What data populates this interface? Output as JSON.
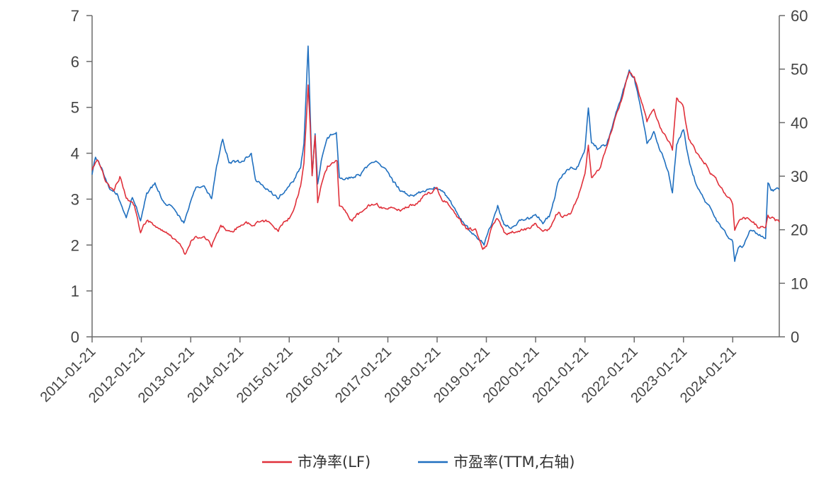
{
  "chart_data": {
    "type": "line",
    "x_tick_labels": [
      "2011-01-21",
      "2012-01-21",
      "2013-01-21",
      "2014-01-21",
      "2015-01-21",
      "2016-01-21",
      "2017-01-21",
      "2018-01-21",
      "2019-01-21",
      "2020-01-21",
      "2021-01-21",
      "2022-01-21",
      "2023-01-21",
      "2024-01-21"
    ],
    "x_range": [
      "2011-01-21",
      "2024-12-31"
    ],
    "y_left": {
      "min": 0,
      "max": 7,
      "ticks": [
        0,
        1,
        2,
        3,
        4,
        5,
        6,
        7
      ]
    },
    "y_right": {
      "min": 0,
      "max": 60,
      "ticks": [
        0,
        10,
        20,
        30,
        40,
        50,
        60
      ]
    },
    "grid": false,
    "legend_position": "bottom",
    "series": [
      {
        "name": "市净率(LF)",
        "axis": "left",
        "color": "#e0303a",
        "points": [
          [
            "2011-01-21",
            3.65
          ],
          [
            "2011-03-01",
            3.9
          ],
          [
            "2011-05-01",
            3.4
          ],
          [
            "2011-07-01",
            3.15
          ],
          [
            "2011-08-15",
            3.5
          ],
          [
            "2011-10-01",
            3.0
          ],
          [
            "2011-12-01",
            2.85
          ],
          [
            "2012-01-15",
            2.3
          ],
          [
            "2012-03-01",
            2.55
          ],
          [
            "2012-05-01",
            2.4
          ],
          [
            "2012-07-01",
            2.3
          ],
          [
            "2012-09-01",
            2.2
          ],
          [
            "2012-11-01",
            2.0
          ],
          [
            "2012-12-10",
            1.75
          ],
          [
            "2013-01-21",
            2.05
          ],
          [
            "2013-03-01",
            2.15
          ],
          [
            "2013-05-01",
            2.2
          ],
          [
            "2013-06-25",
            2.0
          ],
          [
            "2013-09-01",
            2.45
          ],
          [
            "2013-11-01",
            2.3
          ],
          [
            "2014-01-21",
            2.4
          ],
          [
            "2014-03-01",
            2.5
          ],
          [
            "2014-05-01",
            2.45
          ],
          [
            "2014-07-01",
            2.55
          ],
          [
            "2014-09-01",
            2.5
          ],
          [
            "2014-11-01",
            2.35
          ],
          [
            "2015-01-21",
            2.6
          ],
          [
            "2015-03-01",
            2.8
          ],
          [
            "2015-04-15",
            3.3
          ],
          [
            "2015-05-10",
            3.8
          ],
          [
            "2015-06-10",
            5.5
          ],
          [
            "2015-06-25",
            4.6
          ],
          [
            "2015-07-10",
            3.5
          ],
          [
            "2015-08-01",
            4.4
          ],
          [
            "2015-08-20",
            2.95
          ],
          [
            "2015-09-15",
            3.3
          ],
          [
            "2015-11-01",
            3.7
          ],
          [
            "2016-01-10",
            3.85
          ],
          [
            "2016-01-28",
            2.85
          ],
          [
            "2016-03-01",
            2.75
          ],
          [
            "2016-05-01",
            2.55
          ],
          [
            "2016-07-01",
            2.7
          ],
          [
            "2016-09-01",
            2.85
          ],
          [
            "2016-11-01",
            2.85
          ],
          [
            "2017-01-21",
            2.8
          ],
          [
            "2017-03-01",
            2.85
          ],
          [
            "2017-05-01",
            2.75
          ],
          [
            "2017-07-01",
            2.85
          ],
          [
            "2017-09-01",
            2.95
          ],
          [
            "2017-11-01",
            3.1
          ],
          [
            "2018-01-21",
            3.2
          ],
          [
            "2018-03-01",
            3.0
          ],
          [
            "2018-05-01",
            2.85
          ],
          [
            "2018-07-01",
            2.6
          ],
          [
            "2018-09-01",
            2.35
          ],
          [
            "2018-11-01",
            2.3
          ],
          [
            "2018-12-25",
            1.95
          ],
          [
            "2019-01-21",
            2.0
          ],
          [
            "2019-03-01",
            2.4
          ],
          [
            "2019-04-15",
            2.55
          ],
          [
            "2019-06-01",
            2.25
          ],
          [
            "2019-08-01",
            2.3
          ],
          [
            "2019-10-01",
            2.35
          ],
          [
            "2019-12-01",
            2.35
          ],
          [
            "2020-01-21",
            2.45
          ],
          [
            "2020-03-15",
            2.3
          ],
          [
            "2020-05-01",
            2.35
          ],
          [
            "2020-07-10",
            2.75
          ],
          [
            "2020-08-01",
            2.6
          ],
          [
            "2020-10-01",
            2.7
          ],
          [
            "2020-12-01",
            3.0
          ],
          [
            "2021-01-21",
            3.6
          ],
          [
            "2021-02-15",
            4.2
          ],
          [
            "2021-03-10",
            3.5
          ],
          [
            "2021-05-01",
            3.6
          ],
          [
            "2021-07-01",
            4.1
          ],
          [
            "2021-09-01",
            4.8
          ],
          [
            "2021-11-01",
            5.3
          ],
          [
            "2021-12-15",
            5.8
          ],
          [
            "2022-01-21",
            5.7
          ],
          [
            "2022-03-01",
            5.3
          ],
          [
            "2022-04-25",
            4.7
          ],
          [
            "2022-06-15",
            5.0
          ],
          [
            "2022-08-01",
            4.6
          ],
          [
            "2022-10-01",
            4.3
          ],
          [
            "2022-10-31",
            4.1
          ],
          [
            "2022-12-01",
            5.2
          ],
          [
            "2023-01-21",
            5.0
          ],
          [
            "2023-03-01",
            4.3
          ],
          [
            "2023-05-01",
            4.0
          ],
          [
            "2023-07-01",
            3.8
          ],
          [
            "2023-09-01",
            3.5
          ],
          [
            "2023-11-01",
            3.2
          ],
          [
            "2024-01-21",
            2.9
          ],
          [
            "2024-02-05",
            2.35
          ],
          [
            "2024-03-01",
            2.55
          ],
          [
            "2024-04-15",
            2.6
          ],
          [
            "2024-06-01",
            2.55
          ],
          [
            "2024-08-01",
            2.35
          ],
          [
            "2024-09-20",
            2.4
          ],
          [
            "2024-10-08",
            2.7
          ],
          [
            "2024-11-01",
            2.6
          ],
          [
            "2024-12-31",
            2.5
          ]
        ]
      },
      {
        "name": "市盈率(TTM,右轴)",
        "axis": "right",
        "color": "#1f6fbf",
        "points": [
          [
            "2011-01-21",
            30.5
          ],
          [
            "2011-02-15",
            33.5
          ],
          [
            "2011-04-01",
            31.5
          ],
          [
            "2011-06-01",
            28
          ],
          [
            "2011-08-01",
            26.5
          ],
          [
            "2011-10-01",
            22
          ],
          [
            "2011-11-15",
            26
          ],
          [
            "2012-01-15",
            22
          ],
          [
            "2012-03-01",
            26.5
          ],
          [
            "2012-05-01",
            28.5
          ],
          [
            "2012-07-01",
            25.5
          ],
          [
            "2012-09-01",
            24.5
          ],
          [
            "2012-12-01",
            21.5
          ],
          [
            "2013-01-21",
            25.5
          ],
          [
            "2013-03-01",
            27.5
          ],
          [
            "2013-05-01",
            28
          ],
          [
            "2013-06-25",
            26
          ],
          [
            "2013-08-01",
            32
          ],
          [
            "2013-09-15",
            37
          ],
          [
            "2013-11-01",
            33
          ],
          [
            "2014-01-21",
            32.5
          ],
          [
            "2014-03-01",
            33.5
          ],
          [
            "2014-04-15",
            34
          ],
          [
            "2014-05-15",
            29
          ],
          [
            "2014-07-01",
            28.5
          ],
          [
            "2014-09-01",
            27
          ],
          [
            "2014-11-01",
            26
          ],
          [
            "2015-01-21",
            28.5
          ],
          [
            "2015-03-01",
            29.5
          ],
          [
            "2015-04-15",
            31.5
          ],
          [
            "2015-05-10",
            36
          ],
          [
            "2015-06-10",
            54.5
          ],
          [
            "2015-06-25",
            42
          ],
          [
            "2015-07-10",
            30
          ],
          [
            "2015-08-01",
            38
          ],
          [
            "2015-08-20",
            29
          ],
          [
            "2015-09-15",
            33
          ],
          [
            "2015-11-01",
            37
          ],
          [
            "2016-01-05",
            38.5
          ],
          [
            "2016-01-28",
            30
          ],
          [
            "2016-03-01",
            29
          ],
          [
            "2016-05-01",
            30
          ],
          [
            "2016-07-01",
            30.5
          ],
          [
            "2016-09-01",
            32
          ],
          [
            "2016-11-01",
            33
          ],
          [
            "2017-01-21",
            31
          ],
          [
            "2017-03-01",
            29
          ],
          [
            "2017-05-01",
            27
          ],
          [
            "2017-07-01",
            26.5
          ],
          [
            "2017-09-01",
            27
          ],
          [
            "2017-11-01",
            27.5
          ],
          [
            "2018-01-21",
            28
          ],
          [
            "2018-03-01",
            27
          ],
          [
            "2018-05-01",
            25
          ],
          [
            "2018-07-01",
            22.5
          ],
          [
            "2018-09-01",
            20.5
          ],
          [
            "2018-11-01",
            19
          ],
          [
            "2019-01-04",
            17
          ],
          [
            "2019-02-15",
            20
          ],
          [
            "2019-04-15",
            24.5
          ],
          [
            "2019-06-01",
            21
          ],
          [
            "2019-08-01",
            20.5
          ],
          [
            "2019-10-01",
            21.5
          ],
          [
            "2019-12-01",
            22
          ],
          [
            "2020-01-21",
            23
          ],
          [
            "2020-03-15",
            21.5
          ],
          [
            "2020-05-01",
            22.5
          ],
          [
            "2020-07-10",
            29
          ],
          [
            "2020-08-01",
            30
          ],
          [
            "2020-10-01",
            31.5
          ],
          [
            "2020-12-01",
            32
          ],
          [
            "2021-01-21",
            35
          ],
          [
            "2021-02-15",
            42.5
          ],
          [
            "2021-03-10",
            36
          ],
          [
            "2021-05-01",
            35
          ],
          [
            "2021-07-01",
            36
          ],
          [
            "2021-09-01",
            41
          ],
          [
            "2021-11-01",
            46
          ],
          [
            "2021-12-15",
            49.5
          ],
          [
            "2022-01-21",
            48.5
          ],
          [
            "2022-03-01",
            44
          ],
          [
            "2022-04-25",
            36
          ],
          [
            "2022-06-15",
            38
          ],
          [
            "2022-08-01",
            35
          ],
          [
            "2022-10-01",
            31
          ],
          [
            "2022-10-31",
            27
          ],
          [
            "2022-12-01",
            36
          ],
          [
            "2023-01-21",
            39
          ],
          [
            "2023-03-01",
            33
          ],
          [
            "2023-05-01",
            28
          ],
          [
            "2023-07-01",
            25
          ],
          [
            "2023-09-01",
            23
          ],
          [
            "2023-11-01",
            20
          ],
          [
            "2024-01-21",
            18
          ],
          [
            "2024-02-05",
            14
          ],
          [
            "2024-03-01",
            16.5
          ],
          [
            "2024-04-15",
            17
          ],
          [
            "2024-06-01",
            20
          ],
          [
            "2024-08-01",
            19
          ],
          [
            "2024-09-20",
            18.5
          ],
          [
            "2024-10-08",
            29
          ],
          [
            "2024-11-01",
            27.5
          ],
          [
            "2024-12-31",
            27.5
          ]
        ]
      }
    ]
  }
}
